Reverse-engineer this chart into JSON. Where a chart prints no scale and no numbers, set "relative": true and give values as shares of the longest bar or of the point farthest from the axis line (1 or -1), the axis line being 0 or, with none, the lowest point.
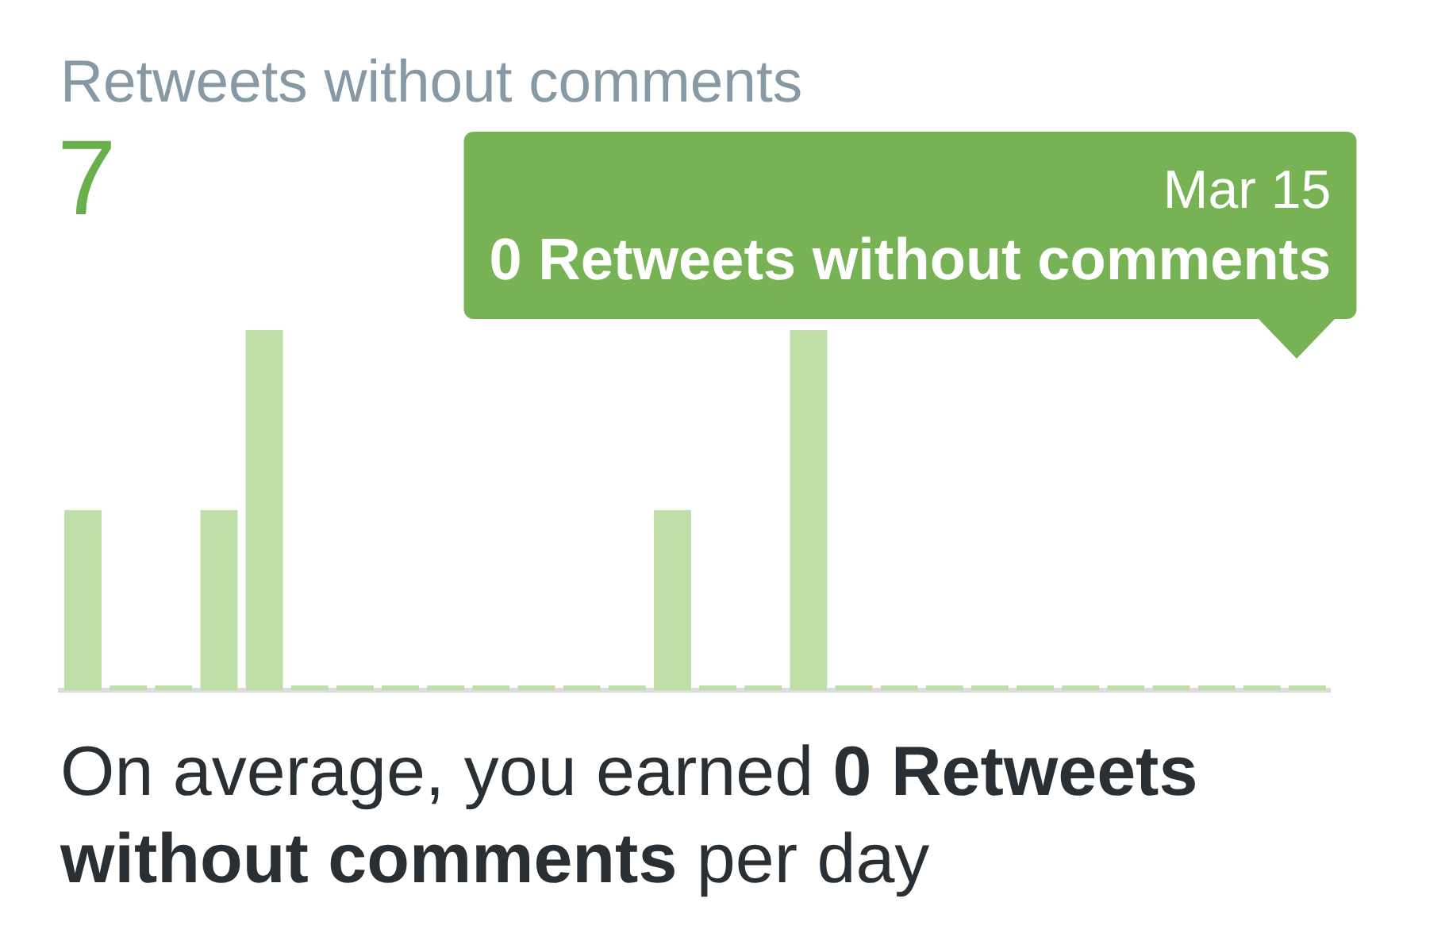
{
  "chart_data": {
    "type": "bar",
    "title": "Retweets without comments",
    "subtitle": "7",
    "categories": [
      null,
      null,
      null,
      null,
      null,
      null,
      null,
      null,
      null,
      null,
      null,
      null,
      null,
      null,
      null,
      null,
      null,
      null,
      null,
      null,
      null,
      null,
      null,
      null,
      null,
      null,
      null,
      null
    ],
    "values": [
      0.5,
      0,
      0,
      0.5,
      1,
      0,
      0,
      0,
      0,
      0,
      0,
      0,
      0,
      0.5,
      0,
      0,
      1,
      0,
      0,
      0,
      0,
      0,
      0,
      0,
      0,
      0,
      0,
      0
    ],
    "color": "#c0dfa8",
    "relative": true,
    "annotations": [
      "Mar 15",
      "0 Retweets without comments",
      "On average, you earned",
      "0 Retweets",
      "without comments",
      "per day"
    ]
  }
}
